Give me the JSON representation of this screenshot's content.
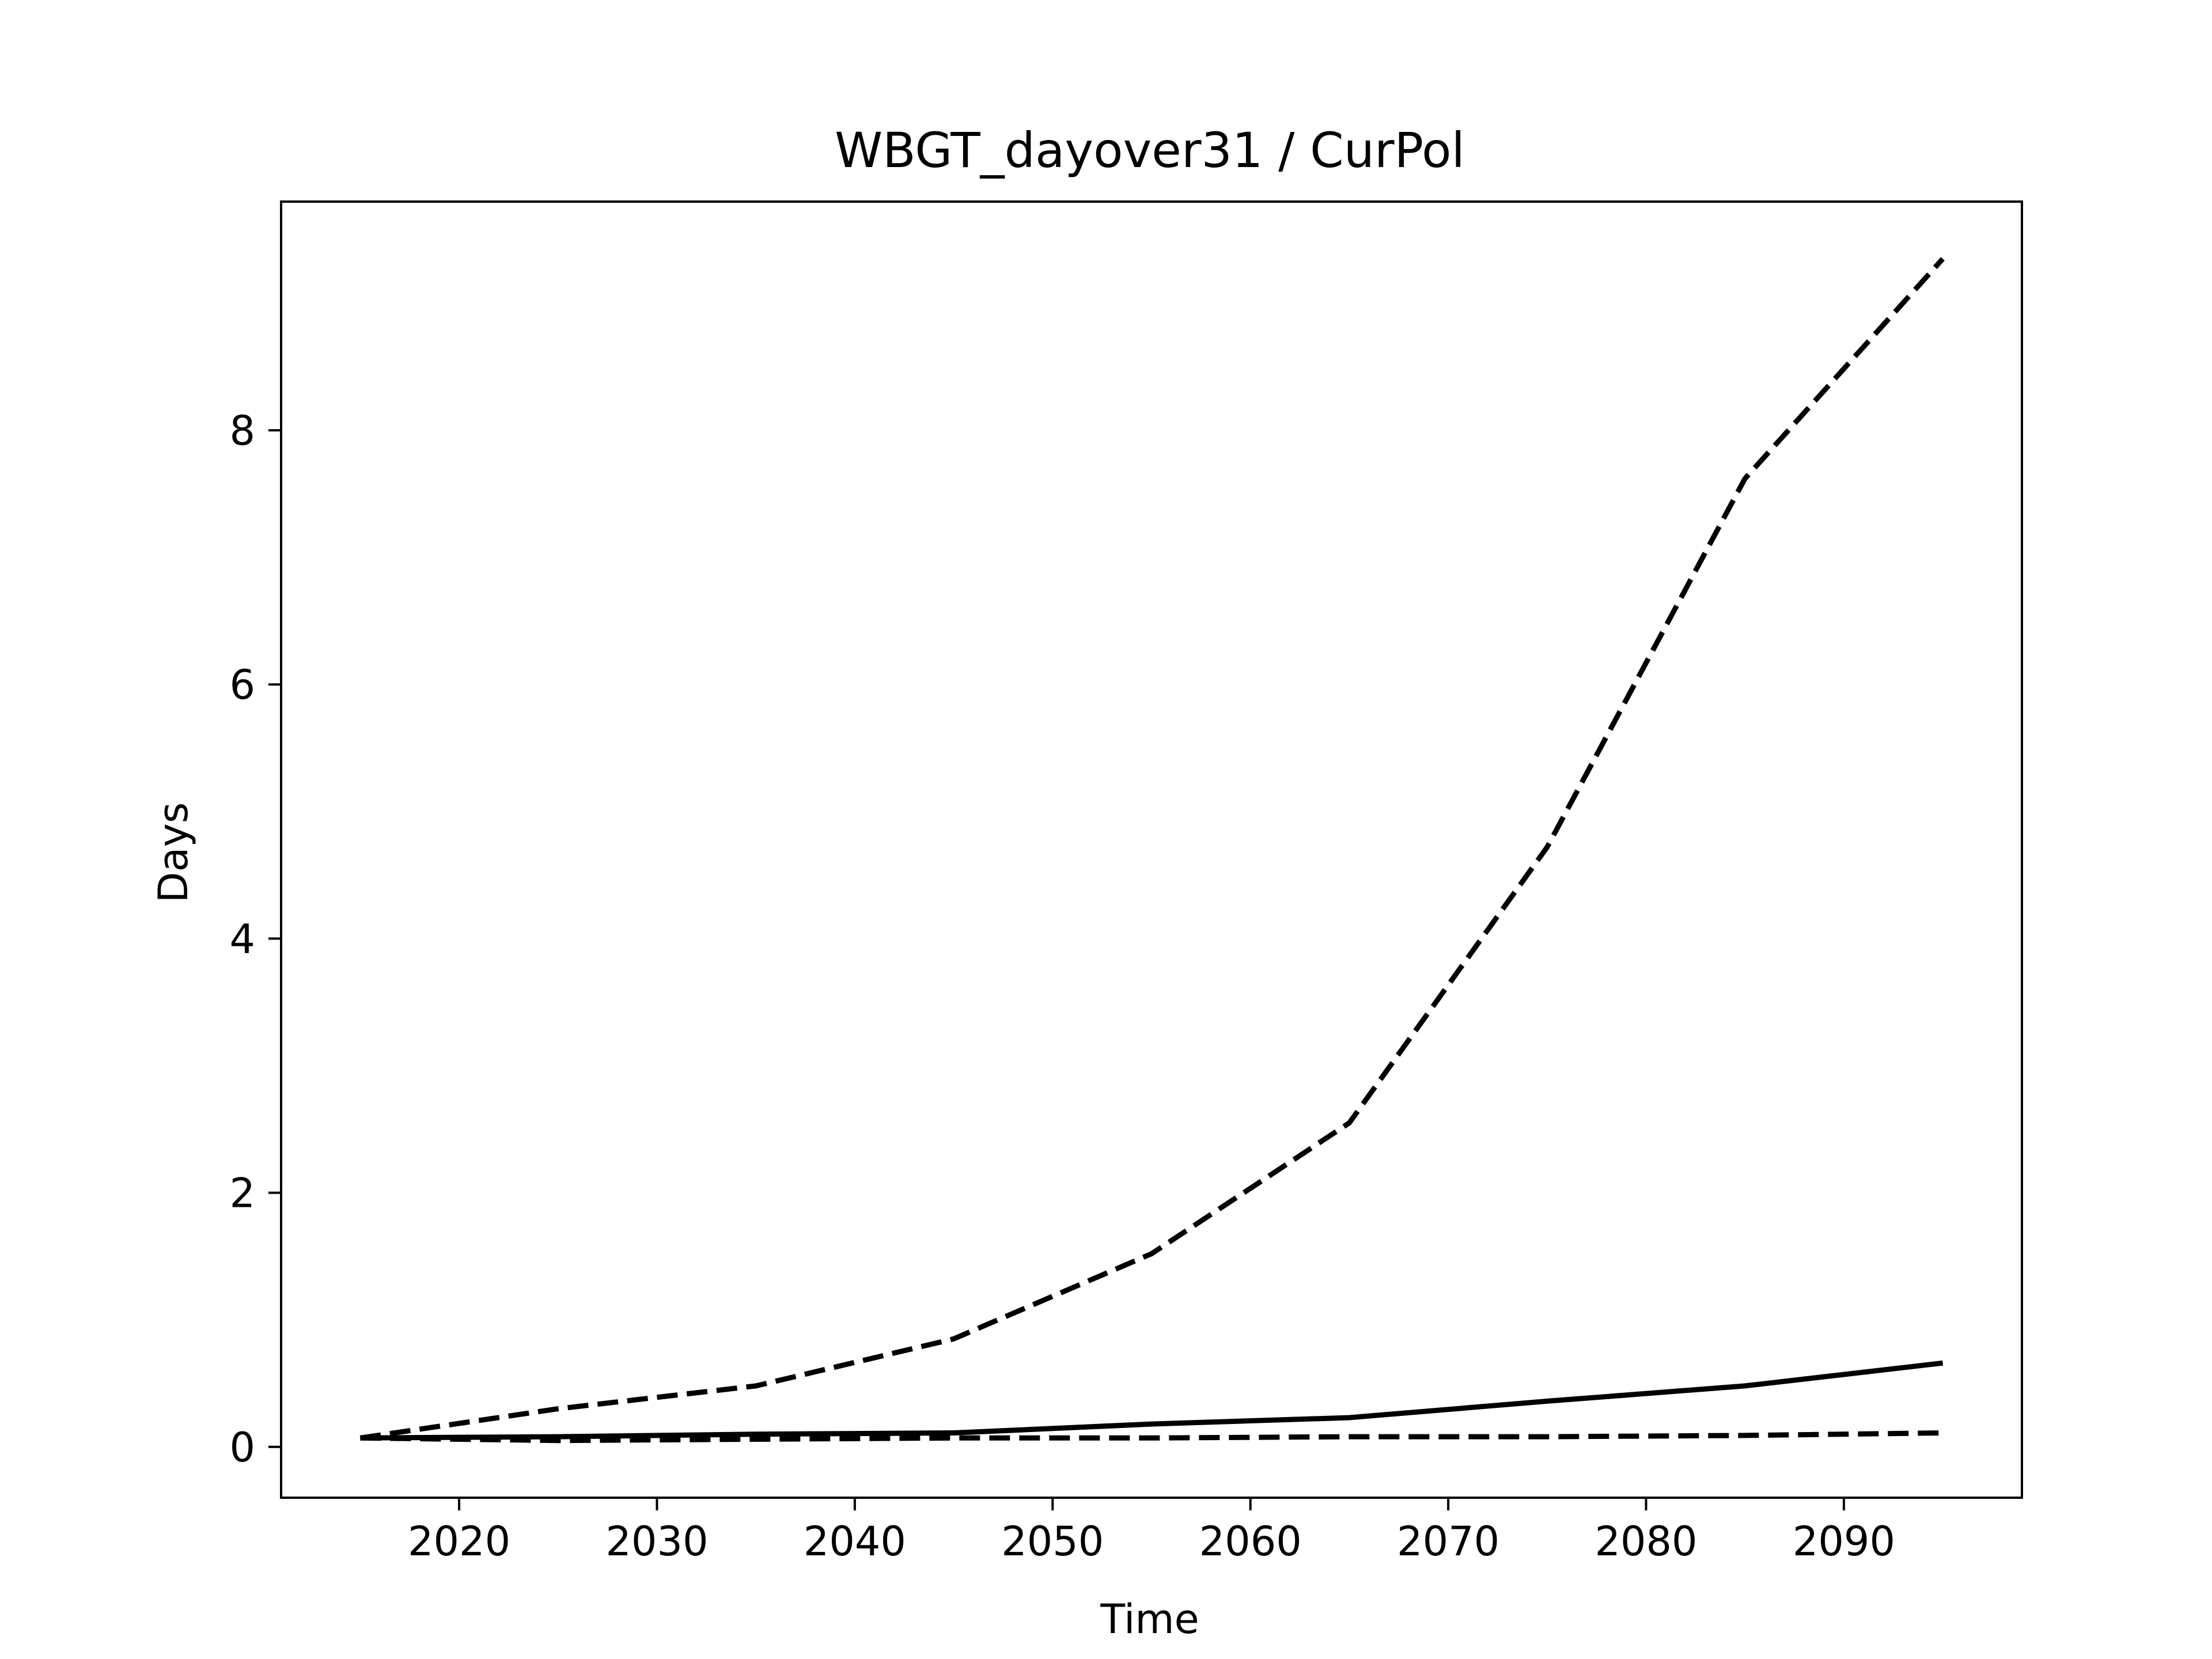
{
  "chart_data": {
    "type": "line",
    "title": "WBGT_dayover31 / CurPol",
    "xlabel": "Time",
    "ylabel": "Days",
    "xlim": [
      2011,
      2099
    ],
    "ylim": [
      -0.4,
      9.8
    ],
    "xticks": [
      2020,
      2030,
      2040,
      2050,
      2060,
      2070,
      2080,
      2090
    ],
    "yticks": [
      0,
      2,
      4,
      6,
      8
    ],
    "grid": false,
    "legend": "none",
    "x": [
      2015,
      2025,
      2035,
      2045,
      2055,
      2065,
      2075,
      2085,
      2095
    ],
    "series": [
      {
        "style": "dashed",
        "values": [
          0.07,
          0.3,
          0.48,
          0.85,
          1.52,
          2.55,
          4.72,
          7.62,
          9.35
        ]
      },
      {
        "style": "solid",
        "values": [
          0.07,
          0.08,
          0.1,
          0.11,
          0.18,
          0.23,
          0.36,
          0.48,
          0.66
        ]
      },
      {
        "style": "dashed",
        "values": [
          0.07,
          0.05,
          0.06,
          0.07,
          0.07,
          0.08,
          0.08,
          0.09,
          0.11
        ]
      }
    ],
    "color": "#000000"
  }
}
